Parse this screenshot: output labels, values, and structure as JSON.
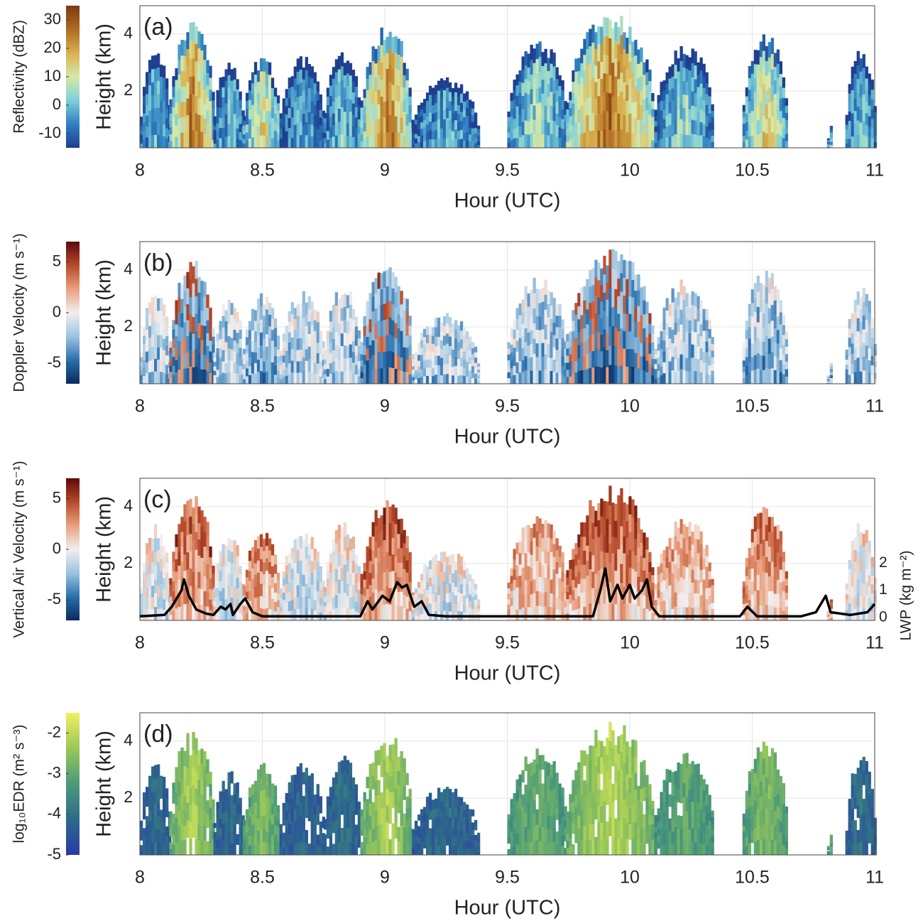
{
  "chart_data": [
    {
      "type": "heatmap",
      "label": "(a)",
      "ylabel": "Height (km)",
      "xlabel": "Hour (UTC)",
      "colorbar_label": "Reflectivity (dBZ)",
      "clim": [
        -15,
        35
      ],
      "cticks": [
        -10,
        0,
        10,
        20,
        30
      ],
      "colormap": [
        "#1f3f8f",
        "#2f7fc0",
        "#7fd0d8",
        "#d8e8a8",
        "#d8b050",
        "#b06a20",
        "#7a3a10"
      ],
      "xlim": [
        8,
        11
      ],
      "xticks": [
        8,
        8.5,
        9,
        9.5,
        10,
        10.5,
        11
      ],
      "ylim": [
        0,
        5
      ],
      "yticks": [
        2,
        4
      ],
      "grid": true
    },
    {
      "type": "heatmap",
      "label": "(b)",
      "ylabel": "Height (km)",
      "xlabel": "Hour (UTC)",
      "colorbar_label": "Doppler Velocity (m s⁻¹)",
      "clim": [
        -7,
        7
      ],
      "cticks": [
        -5,
        0,
        5
      ],
      "colormap": [
        "#0a2a5e",
        "#2a70ae",
        "#9cc4e0",
        "#f2efee",
        "#e8a07e",
        "#b84a2a",
        "#5a0a0a"
      ],
      "xlim": [
        8,
        11
      ],
      "xticks": [
        8,
        8.5,
        9,
        9.5,
        10,
        10.5,
        11
      ],
      "ylim": [
        0,
        5
      ],
      "yticks": [
        2,
        4
      ],
      "grid": true
    },
    {
      "type": "heatmap",
      "label": "(c)",
      "ylabel": "Height (km)",
      "xlabel": "Hour (UTC)",
      "colorbar_label": "Vertical Air Velocity (m s⁻¹)",
      "clim": [
        -7,
        7
      ],
      "cticks": [
        -5,
        0,
        5
      ],
      "colormap": [
        "#0a2a5e",
        "#2a70ae",
        "#9cc4e0",
        "#f2efee",
        "#e8a07e",
        "#b84a2a",
        "#5a0a0a"
      ],
      "xlim": [
        8,
        11
      ],
      "xticks": [
        8,
        8.5,
        9,
        9.5,
        10,
        10.5,
        11
      ],
      "ylim": [
        0,
        5
      ],
      "yticks": [
        2,
        4
      ],
      "grid": true,
      "y2label": "LWP (kg m⁻²)",
      "y2lim": [
        -0.1,
        5.1
      ],
      "y2ticks": [
        0,
        1,
        2
      ],
      "series": [
        {
          "color": "#000000",
          "axis": "y2",
          "x": [
            8.0,
            8.1,
            8.13,
            8.17,
            8.18,
            8.2,
            8.23,
            8.27,
            8.3,
            8.33,
            8.35,
            8.37,
            8.38,
            8.41,
            8.43,
            8.46,
            8.5,
            8.9,
            8.93,
            8.95,
            8.99,
            9.02,
            9.05,
            9.07,
            9.09,
            9.12,
            9.15,
            9.18,
            9.25,
            9.85,
            9.88,
            9.9,
            9.92,
            9.95,
            9.97,
            10.0,
            10.02,
            10.05,
            10.07,
            10.09,
            10.12,
            10.45,
            10.48,
            10.52,
            10.7,
            10.76,
            10.8,
            10.82,
            10.9,
            10.97,
            11.0
          ],
          "values": [
            0.05,
            0.1,
            0.4,
            1.0,
            1.4,
            0.8,
            0.3,
            0.15,
            0.1,
            0.4,
            0.3,
            0.5,
            0.1,
            0.5,
            0.7,
            0.2,
            0.05,
            0.05,
            0.6,
            0.3,
            0.8,
            0.6,
            1.3,
            1.1,
            1.2,
            0.4,
            0.6,
            0.1,
            0.05,
            0.05,
            1.0,
            1.8,
            0.6,
            1.2,
            0.7,
            1.2,
            0.7,
            1.0,
            1.4,
            0.4,
            0.05,
            0.05,
            0.4,
            0.05,
            0.05,
            0.2,
            0.8,
            0.2,
            0.1,
            0.2,
            0.5
          ]
        }
      ]
    },
    {
      "type": "heatmap",
      "label": "(d)",
      "ylabel": "Height (km)",
      "xlabel": "Hour (UTC)",
      "colorbar_label": "log₁₀EDR (m² s⁻³)",
      "clim": [
        -5,
        -1.5
      ],
      "cticks": [
        -5,
        -4,
        -3,
        -2
      ],
      "colormap": [
        "#2a3aa8",
        "#2e6a8a",
        "#4a9a7a",
        "#9ac858",
        "#f0f060"
      ],
      "xlim": [
        8,
        11
      ],
      "xticks": [
        8,
        8.5,
        9,
        9.5,
        10,
        10.5,
        11
      ],
      "ylim": [
        0,
        5
      ],
      "yticks": [
        2,
        4
      ],
      "grid": true
    }
  ]
}
